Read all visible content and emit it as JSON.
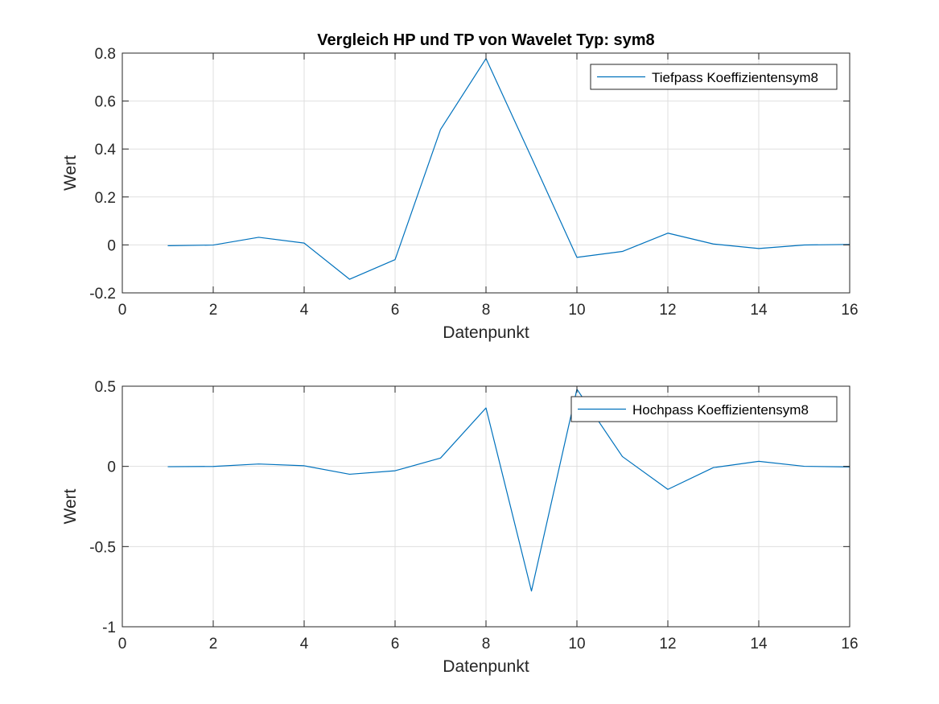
{
  "figure_title": "Vergleich HP und TP von Wavelet Typ: sym8",
  "colors": {
    "line": "#0072BD",
    "grid": "#dfdfdf",
    "axis": "#262626",
    "background": "#ffffff"
  },
  "chart_data": [
    {
      "type": "line",
      "title": "Vergleich HP und TP von Wavelet Typ: sym8",
      "xlabel": "Datenpunkt",
      "ylabel": "Wert",
      "xlim": [
        0,
        16
      ],
      "ylim": [
        -0.2,
        0.8
      ],
      "xticks": [
        0,
        2,
        4,
        6,
        8,
        10,
        12,
        14,
        16
      ],
      "xtick_labels": [
        "0",
        "2",
        "4",
        "6",
        "8",
        "10",
        "12",
        "14",
        "16"
      ],
      "yticks": [
        -0.2,
        0,
        0.2,
        0.4,
        0.6,
        0.8
      ],
      "ytick_labels": [
        "-0.2",
        "0",
        "0.2",
        "0.4",
        "0.6",
        "0.8"
      ],
      "grid": true,
      "legend_position": "top-right",
      "series": [
        {
          "name": "Tiefpass Koeffizientensym8",
          "x": [
            1,
            2,
            3,
            4,
            5,
            6,
            7,
            8,
            9,
            10,
            11,
            12,
            13,
            14,
            15,
            16
          ],
          "y": [
            -0.0034,
            -0.0005,
            0.0317,
            0.0076,
            -0.1433,
            -0.0613,
            0.4814,
            0.7772,
            0.3644,
            -0.0519,
            -0.0272,
            0.0491,
            0.0038,
            -0.015,
            -0.0003,
            0.0019
          ]
        }
      ]
    },
    {
      "type": "line",
      "title": "",
      "xlabel": "Datenpunkt",
      "ylabel": "Wert",
      "xlim": [
        0,
        16
      ],
      "ylim": [
        -1,
        0.5
      ],
      "xticks": [
        0,
        2,
        4,
        6,
        8,
        10,
        12,
        14,
        16
      ],
      "xtick_labels": [
        "0",
        "2",
        "4",
        "6",
        "8",
        "10",
        "12",
        "14",
        "16"
      ],
      "yticks": [
        -1,
        -0.5,
        0,
        0.5
      ],
      "ytick_labels": [
        "-1",
        "-0.5",
        "0",
        "0.5"
      ],
      "grid": true,
      "legend_position": "top-right",
      "series": [
        {
          "name": "Hochpass Koeffizientensym8",
          "x": [
            1,
            2,
            3,
            4,
            5,
            6,
            7,
            8,
            9,
            10,
            11,
            12,
            13,
            14,
            15,
            16
          ],
          "y": [
            -0.0019,
            -0.0003,
            0.015,
            0.0038,
            -0.0491,
            -0.0272,
            0.0519,
            0.3644,
            -0.7772,
            0.4814,
            0.0613,
            -0.1433,
            -0.0076,
            0.0317,
            0.0005,
            -0.0034
          ]
        }
      ]
    }
  ]
}
